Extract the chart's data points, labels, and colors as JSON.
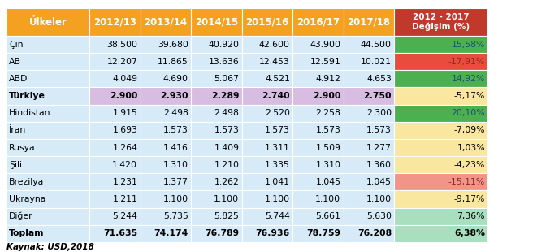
{
  "header_row": [
    "Ülkeler",
    "2012/13",
    "2013/14",
    "2014/15",
    "2015/16",
    "2016/17",
    "2017/18",
    "2012 - 2017\nDeğişim (%)"
  ],
  "rows": [
    [
      "Çin",
      "38.500",
      "39.680",
      "40.920",
      "42.600",
      "43.900",
      "44.500",
      "15,58%"
    ],
    [
      "AB",
      "12.207",
      "11.865",
      "13.636",
      "12.453",
      "12.591",
      "10.021",
      "-17,91%"
    ],
    [
      "ABD",
      "4.049",
      "4.690",
      "5.067",
      "4.521",
      "4.912",
      "4.653",
      "14,92%"
    ],
    [
      "Türkiye",
      "2.900",
      "2.930",
      "2.289",
      "2.740",
      "2.900",
      "2.750",
      "-5,17%"
    ],
    [
      "Hindistan",
      "1.915",
      "2.498",
      "2.498",
      "2.520",
      "2.258",
      "2.300",
      "20,10%"
    ],
    [
      "İran",
      "1.693",
      "1.573",
      "1.573",
      "1.573",
      "1.573",
      "1.573",
      "-7,09%"
    ],
    [
      "Rusya",
      "1.264",
      "1.416",
      "1.409",
      "1.311",
      "1.509",
      "1.277",
      "1,03%"
    ],
    [
      "Şili",
      "1.420",
      "1.310",
      "1.210",
      "1.335",
      "1.310",
      "1.360",
      "-4,23%"
    ],
    [
      "Brezilya",
      "1.231",
      "1.377",
      "1.262",
      "1.041",
      "1.045",
      "1.045",
      "-15,11%"
    ],
    [
      "Ukrayna",
      "1.211",
      "1.100",
      "1.100",
      "1.100",
      "1.100",
      "1.100",
      "-9,17%"
    ],
    [
      "Diğer",
      "5.244",
      "5.735",
      "5.825",
      "5.744",
      "5.661",
      "5.630",
      "7,36%"
    ]
  ],
  "total_row": [
    "Toplam",
    "71.635",
    "74.174",
    "76.789",
    "76.936",
    "78.759",
    "76.208",
    "6,38%"
  ],
  "note": "Kaynak: USD,2018",
  "header_bg": "#F4A020",
  "header_last_bg": "#C0392B",
  "row_bg_even": "#D6EAF8",
  "row_bg_odd": "#D6EAF8",
  "turkiye_bg": "#D7BDE2",
  "total_bg": "#D6EAF8",
  "change_colors": {
    "strong_green": "#4CAF50",
    "light_green": "#A9DFBF",
    "yellow": "#F9E79F",
    "light_red": "#F1948A",
    "strong_red": "#E74C3C"
  },
  "change_color_map": [
    "#4CAF50",
    "#E74C3C",
    "#4CAF50",
    "#F9E79F",
    "#4CAF50",
    "#F9E79F",
    "#F9E79F",
    "#F9E79F",
    "#F1948A",
    "#F9E79F",
    "#A9DFBF"
  ],
  "total_change_color": "#A9DFBF"
}
